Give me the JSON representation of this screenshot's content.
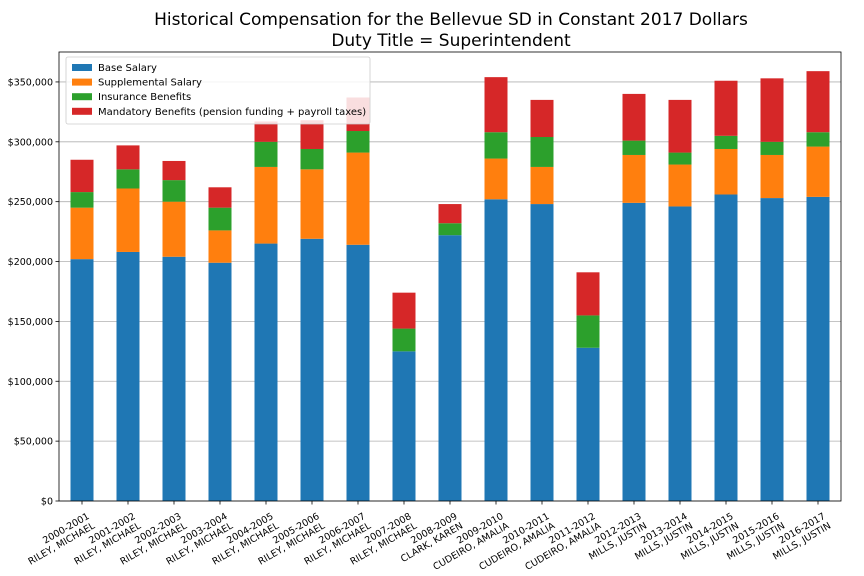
{
  "chart_data": {
    "type": "bar",
    "stacked": true,
    "title": "Historical Compensation for the Bellevue SD in Constant 2017 Dollars",
    "subtitle": "Duty Title = Superintendent",
    "xlabel": "",
    "ylabel": "",
    "ylim": [
      0,
      375000
    ],
    "yticks": [
      0,
      50000,
      100000,
      150000,
      200000,
      250000,
      300000,
      350000
    ],
    "ytick_labels": [
      "$0",
      "$50,000",
      "$100,000",
      "$150,000",
      "$200,000",
      "$250,000",
      "$300,000",
      "$350,000"
    ],
    "grid": "horizontal",
    "legend_position": "top-left",
    "categories": [
      [
        "2000-2001",
        "RILEY, MICHAEL"
      ],
      [
        "2001-2002",
        "RILEY, MICHAEL"
      ],
      [
        "2002-2003",
        "RILEY, MICHAEL"
      ],
      [
        "2003-2004",
        "RILEY, MICHAEL"
      ],
      [
        "2004-2005",
        "RILEY, MICHAEL"
      ],
      [
        "2005-2006",
        "RILEY, MICHAEL"
      ],
      [
        "2006-2007",
        "RILEY, MICHAEL"
      ],
      [
        "2007-2008",
        "RILEY, MICHAEL"
      ],
      [
        "2008-2009",
        "CLARK, KAREN"
      ],
      [
        "2009-2010",
        "CUDEIRO, AMALIA"
      ],
      [
        "2010-2011",
        "CUDEIRO, AMALIA"
      ],
      [
        "2011-2012",
        "CUDEIRO, AMALIA"
      ],
      [
        "2012-2013",
        "MILLS, JUSTIN"
      ],
      [
        "2013-2014",
        "MILLS, JUSTIN"
      ],
      [
        "2014-2015",
        "MILLS, JUSTIN"
      ],
      [
        "2015-2016",
        "MILLS, JUSTIN"
      ],
      [
        "2016-2017",
        "MILLS, JUSTIN"
      ]
    ],
    "series": [
      {
        "name": "Base Salary",
        "color": "#1f77b4",
        "values": [
          202000,
          208000,
          204000,
          199000,
          215000,
          219000,
          214000,
          125000,
          222000,
          252000,
          248000,
          128000,
          249000,
          246000,
          256000,
          253000,
          254000
        ]
      },
      {
        "name": "Supplemental Salary",
        "color": "#ff7f0e",
        "values": [
          43000,
          53000,
          46000,
          27000,
          64000,
          58000,
          77000,
          0,
          0,
          34000,
          31000,
          0,
          40000,
          35000,
          38000,
          36000,
          42000
        ]
      },
      {
        "name": "Insurance Benefits",
        "color": "#2ca02c",
        "values": [
          13000,
          16000,
          18000,
          19000,
          21000,
          17000,
          18000,
          19000,
          10000,
          22000,
          25000,
          27000,
          12000,
          10000,
          11000,
          11000,
          12000
        ]
      },
      {
        "name": "Mandatory Benefits (pension funding + payroll taxes)",
        "color": "#d62728",
        "values": [
          27000,
          20000,
          16000,
          17000,
          17000,
          24000,
          28000,
          30000,
          16000,
          46000,
          31000,
          36000,
          39000,
          44000,
          46000,
          53000,
          51000
        ]
      }
    ]
  }
}
